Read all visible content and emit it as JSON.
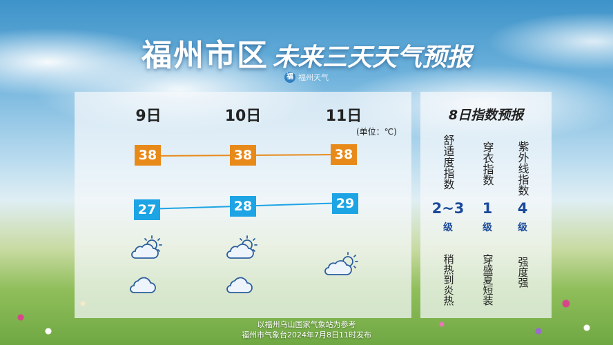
{
  "header": {
    "title_main": "福州市区",
    "title_sub": "未来三天天气预报",
    "logo_text": "福州天气"
  },
  "forecast": {
    "unit": "(单位：℃)",
    "days": [
      {
        "date": "9日",
        "high": "38",
        "low": "27",
        "icons": [
          "partly-cloudy-sun-icon",
          "cloud-icon"
        ]
      },
      {
        "date": "10日",
        "high": "38",
        "low": "28",
        "icons": [
          "partly-cloudy-sun-icon",
          "cloud-icon"
        ]
      },
      {
        "date": "11日",
        "high": "38",
        "low": "29",
        "icons": [
          "sun-behind-cloud-icon"
        ]
      }
    ]
  },
  "indices": {
    "title": "8日指数预报",
    "items": [
      {
        "name": "舒适度指数",
        "value": "2~3",
        "grade": "级",
        "desc": "稍热到炎热"
      },
      {
        "name": "穿衣指数",
        "value": "1",
        "grade": "级",
        "desc": "穿盛夏短装"
      },
      {
        "name": "紫外线指数",
        "value": "4",
        "grade": "级",
        "desc": "强度强"
      }
    ]
  },
  "footer": {
    "line1": "以福州乌山国家气象站为参考",
    "line2": "福州市气象台2024年7月8日11时发布"
  },
  "colors": {
    "high_temp": "#e88a1a",
    "low_temp": "#1da4e4",
    "index_value": "#1b4a9a"
  }
}
